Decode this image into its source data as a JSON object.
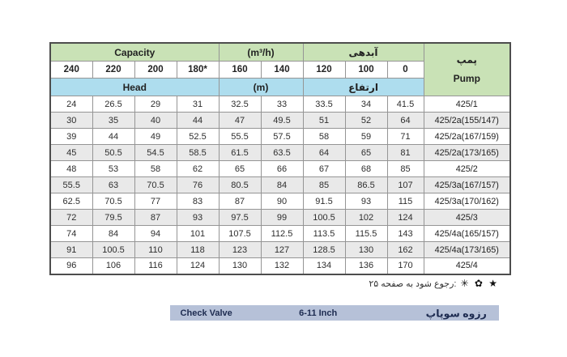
{
  "table": {
    "header": {
      "capacity_en": "Capacity",
      "capacity_unit": "(m³/h)",
      "capacity_fa": "آبدهی",
      "head_en": "Head",
      "head_unit": "(m)",
      "head_fa": "ارتفاع",
      "pump_fa": "پمپ",
      "pump_en": "Pump"
    },
    "columns": [
      "240",
      "220",
      "200",
      "180*",
      "160",
      "140",
      "120",
      "100",
      "0"
    ],
    "rows": [
      {
        "values": [
          "24",
          "26.5",
          "29",
          "31",
          "32.5",
          "33",
          "33.5",
          "34",
          "41.5"
        ],
        "pump": "425/1"
      },
      {
        "values": [
          "30",
          "35",
          "40",
          "44",
          "47",
          "49.5",
          "51",
          "52",
          "64"
        ],
        "pump": "425/2a(155/147)"
      },
      {
        "values": [
          "39",
          "44",
          "49",
          "52.5",
          "55.5",
          "57.5",
          "58",
          "59",
          "71"
        ],
        "pump": "425/2a(167/159)"
      },
      {
        "values": [
          "45",
          "50.5",
          "54.5",
          "58.5",
          "61.5",
          "63.5",
          "64",
          "65",
          "81"
        ],
        "pump": "425/2a(173/165)"
      },
      {
        "values": [
          "48",
          "53",
          "58",
          "62",
          "65",
          "66",
          "67",
          "68",
          "85"
        ],
        "pump": "425/2"
      },
      {
        "values": [
          "55.5",
          "63",
          "70.5",
          "76",
          "80.5",
          "84",
          "85",
          "86.5",
          "107"
        ],
        "pump": "425/3a(167/157)"
      },
      {
        "values": [
          "62.5",
          "70.5",
          "77",
          "83",
          "87",
          "90",
          "91.5",
          "93",
          "115"
        ],
        "pump": "425/3a(170/162)"
      },
      {
        "values": [
          "72",
          "79.5",
          "87",
          "93",
          "97.5",
          "99",
          "100.5",
          "102",
          "124"
        ],
        "pump": "425/3"
      },
      {
        "values": [
          "74",
          "84",
          "94",
          "101",
          "107.5",
          "112.5",
          "113.5",
          "115.5",
          "143"
        ],
        "pump": "425/4a(165/157)"
      },
      {
        "values": [
          "91",
          "100.5",
          "110",
          "118",
          "123",
          "127",
          "128.5",
          "130",
          "162"
        ],
        "pump": "425/4a(173/165)"
      },
      {
        "values": [
          "96",
          "106",
          "116",
          "124",
          "130",
          "132",
          "134",
          "136",
          "170"
        ],
        "pump": "425/4"
      }
    ]
  },
  "footnote": {
    "symbols": "★ ✿ ✳",
    "text": ":رجوع شود به صفحه ۲۵"
  },
  "bottom_bar": {
    "check_valve_en": "Check Valve",
    "size_range": "6-11 Inch",
    "check_valve_fa": "رزوه سوپاپ"
  },
  "colors": {
    "capacity_header_green": "#c9e2b6",
    "head_header_blue": "#aeddee",
    "pump_header_purple": "#a7a2c7",
    "alt_row_gray": "#e9e9e9",
    "bottom_bar_blue": "#b6c1d8",
    "bottom_bar_text_navy": "#1d2b50"
  }
}
